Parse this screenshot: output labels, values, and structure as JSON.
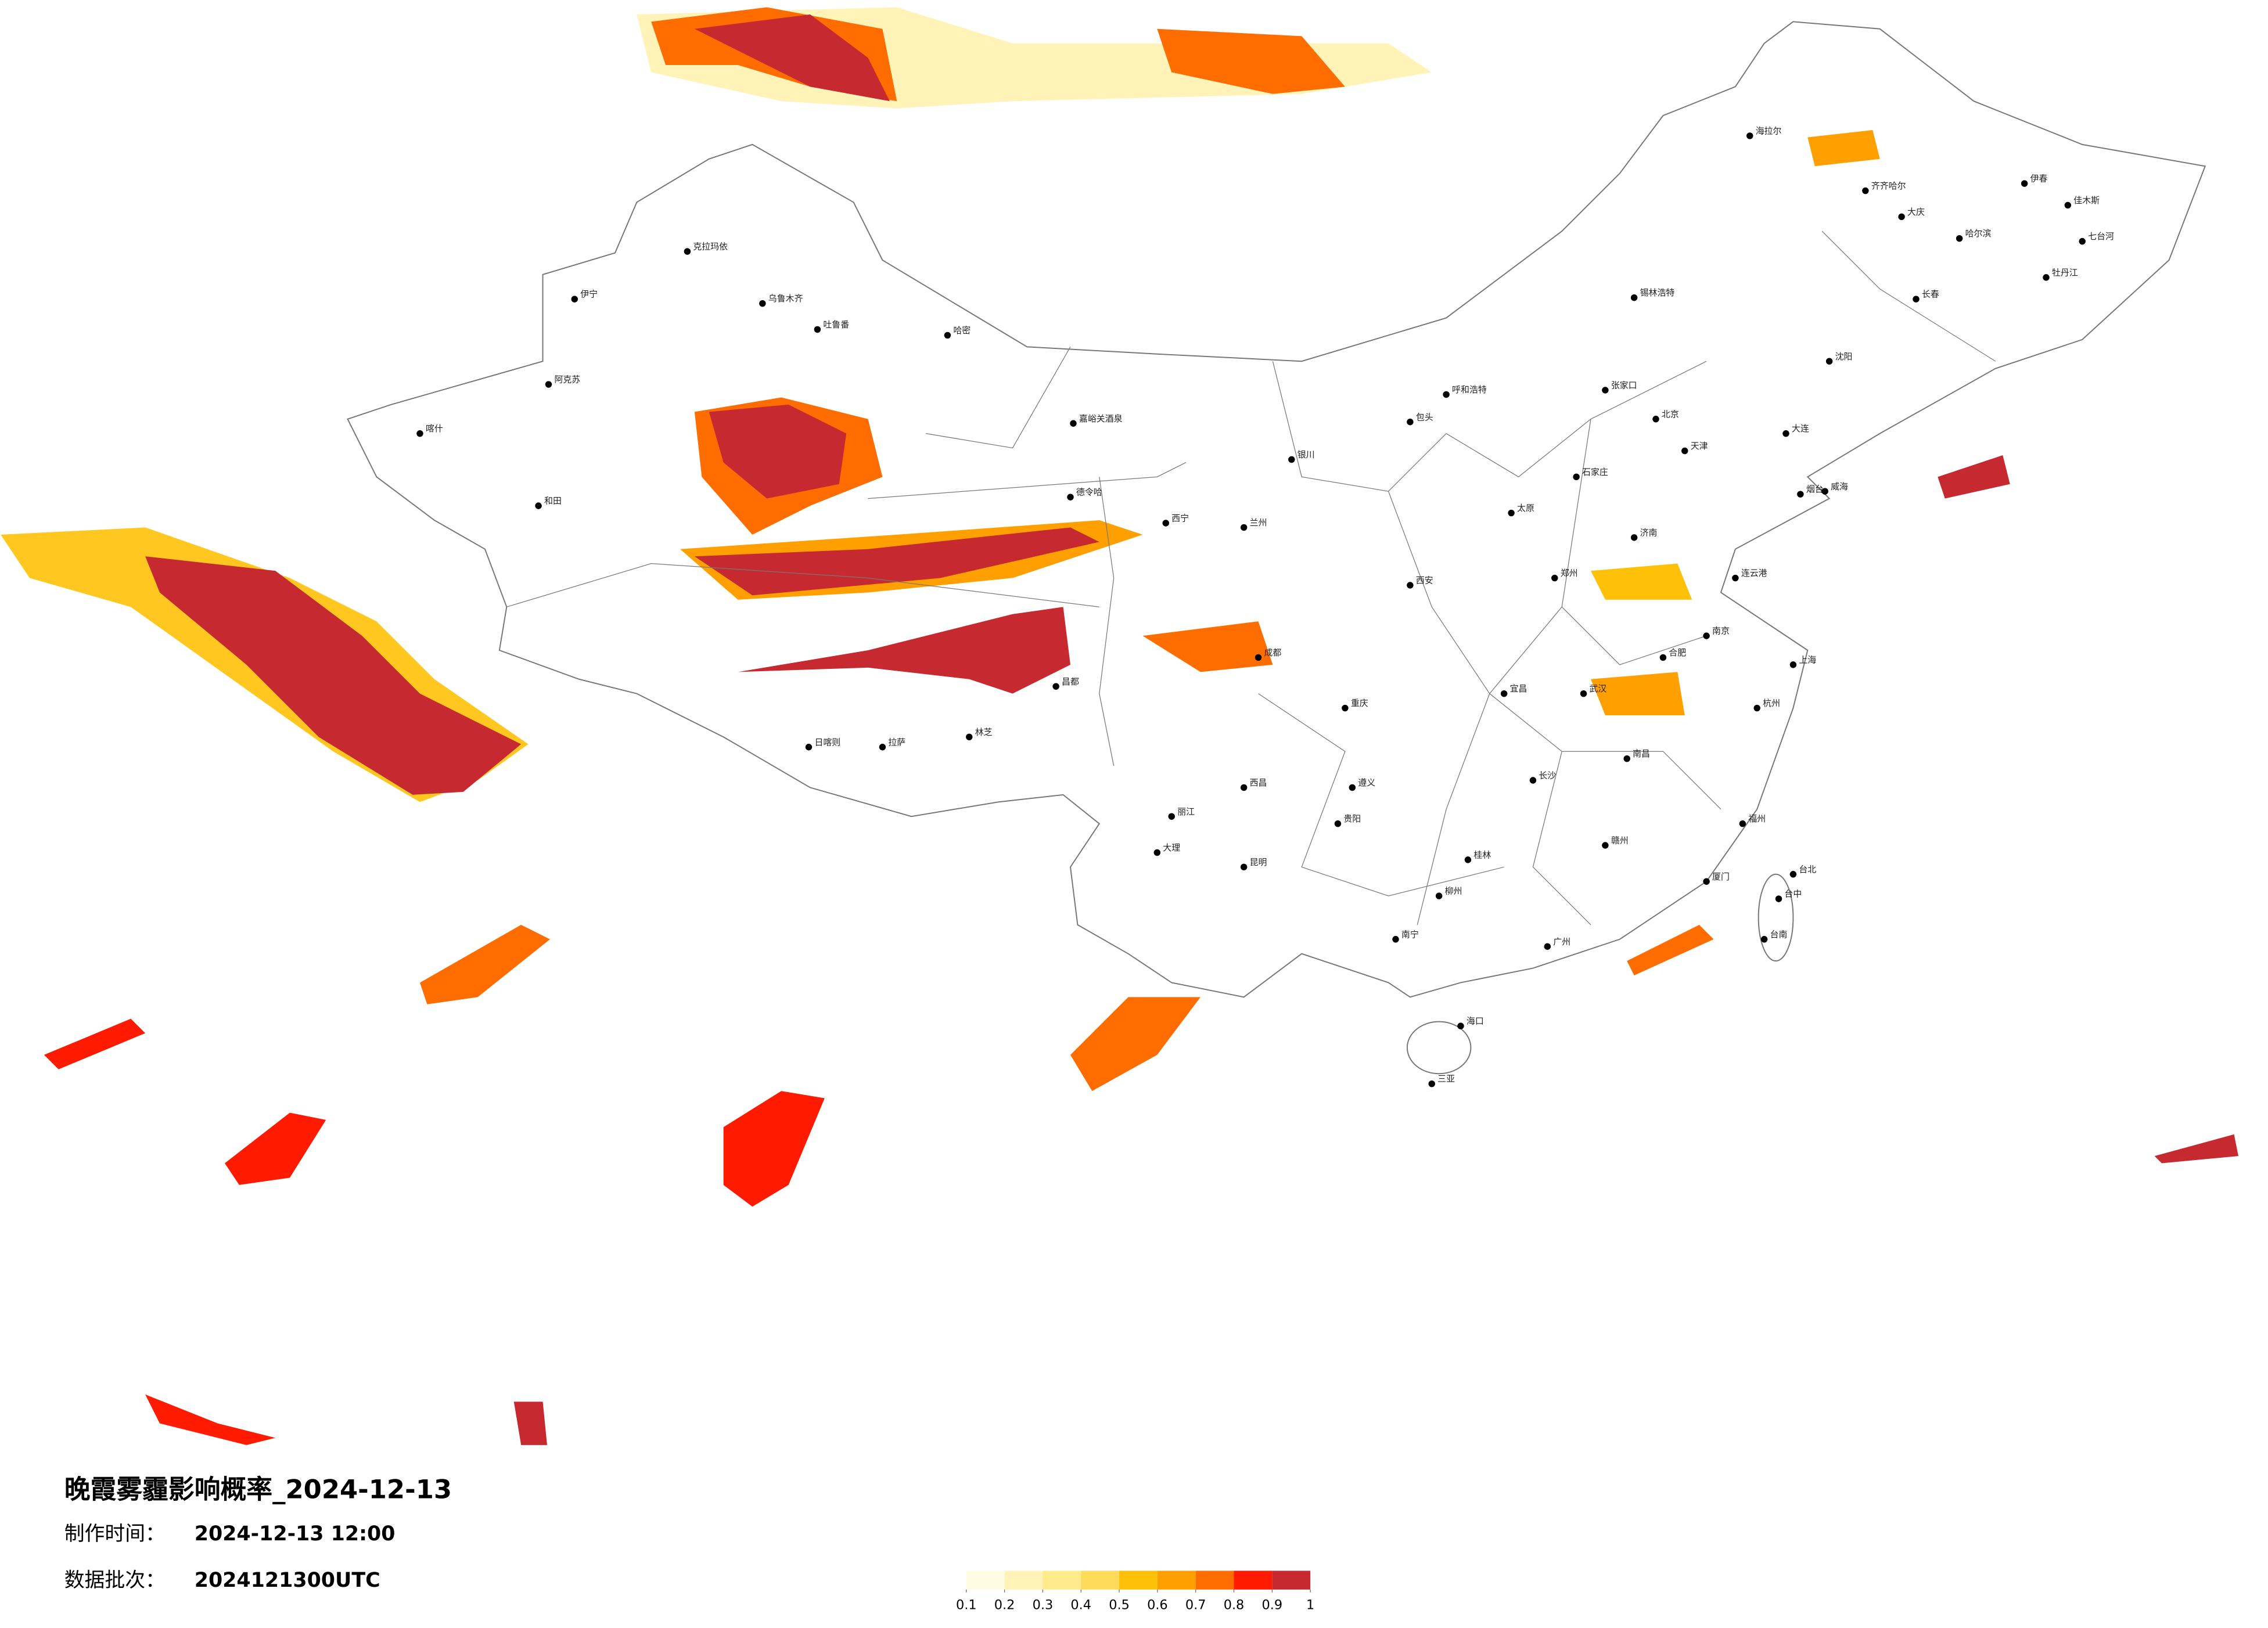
{
  "title": "晚霞雾霾影响概率_2024-12-13",
  "made_time_label": "制作时间：",
  "made_time": "2024-12-13 12:00",
  "batch_label": "数据批次：",
  "batch": "2024121300UTC",
  "legend": {
    "ticks": [
      0.1,
      0.2,
      0.3,
      0.4,
      0.5,
      0.6,
      0.7,
      0.8,
      0.9,
      1
    ],
    "colors": [
      "#fffbe3",
      "#fff3b8",
      "#ffeb8c",
      "#ffdb5c",
      "#ffc107",
      "#ffa000",
      "#ff6d00",
      "#ff1a00",
      "#c62a30"
    ]
  },
  "cities": [
    "克拉玛依",
    "乌鲁木齐",
    "吐鲁番",
    "哈密",
    "伊宁",
    "阿克苏",
    "喀什",
    "和田",
    "嘉峪关酒泉",
    "德令哈",
    "拉萨",
    "日喀则",
    "林芝",
    "昌都",
    "西宁",
    "兰州",
    "银川",
    "呼和浩特",
    "包头",
    "北京",
    "天津",
    "石家庄",
    "太原",
    "济南",
    "郑州",
    "西安",
    "成都",
    "重庆",
    "贵阳",
    "昆明",
    "南宁",
    "海口",
    "三亚",
    "广州",
    "长沙",
    "武汉",
    "南昌",
    "合肥",
    "南京",
    "上海",
    "杭州",
    "福州",
    "台北",
    "台中",
    "台南",
    "厦门",
    "哈尔滨",
    "齐齐哈尔",
    "长春",
    "沈阳",
    "大连",
    "海拉尔",
    "锡林浩特",
    "伊春",
    "佳木斯",
    "牡丹江",
    "七台河",
    "大庆",
    "烟台",
    "威海",
    "连云港",
    "大理",
    "丽江",
    "西昌",
    "遵义",
    "桂林",
    "柳州",
    "赣州",
    "宜昌",
    "张家口"
  ]
}
